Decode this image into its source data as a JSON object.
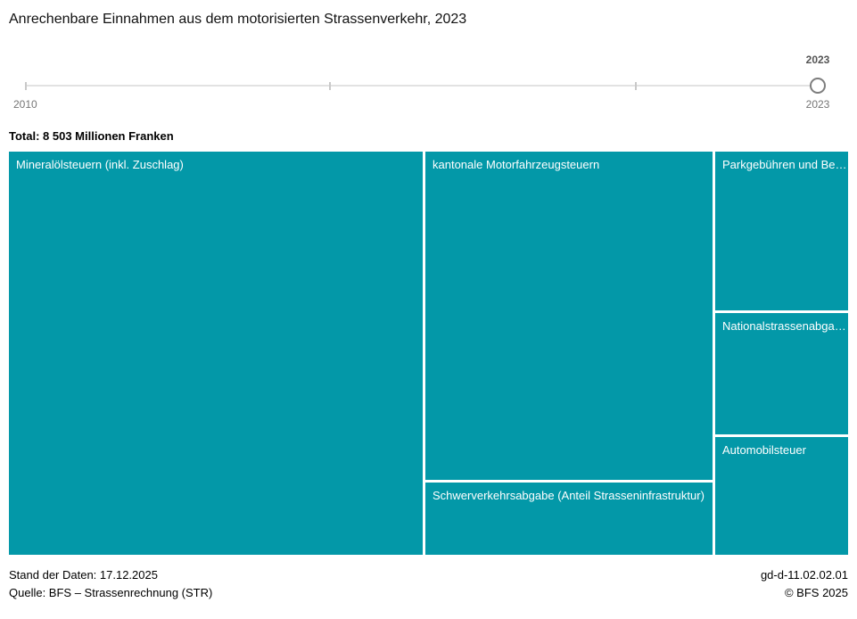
{
  "title": "Anrechenbare Einnahmen aus dem motorisierten Strassenverkehr, 2023",
  "slider": {
    "selected_year_label": "2023",
    "min_label": "2010",
    "max_label": "2023"
  },
  "total_label": "Total: 8 503 Millionen Franken",
  "chart_data": {
    "type": "treemap",
    "title": "Anrechenbare Einnahmen aus dem motorisierten Strassenverkehr, 2023",
    "year": 2023,
    "total_value_mio_chf": 8503,
    "unit": "Millionen Franken",
    "block_color": "#0398a8",
    "layout": "three columns, areas proportional to values, white 3px gaps, labels top-left in white",
    "blocks": [
      {
        "label": "Mineralölsteuern (inkl. Zuschlag)",
        "value_mio_chf_estimated": 4248
      },
      {
        "label": "kantonale Motorfahrzeugsteuern",
        "value_mio_chf_estimated": 2400
      },
      {
        "label": "Schwerverkehrsabgabe (Anteil Strasseninfrastruktur)",
        "value_mio_chf_estimated": 525
      },
      {
        "label": "Parkgebühren und Be…",
        "value_mio_chf_estimated": 535
      },
      {
        "label": "Nationalstrassenabga…",
        "value_mio_chf_estimated": 405
      },
      {
        "label": "Automobilsteuer",
        "value_mio_chf_estimated": 390
      }
    ]
  },
  "footer": {
    "data_status": "Stand der Daten: 17.12.2025",
    "source": "Quelle: BFS – Strassenrechnung (STR)",
    "reference": "gd-d-11.02.02.01",
    "copyright": "© BFS 2025"
  }
}
